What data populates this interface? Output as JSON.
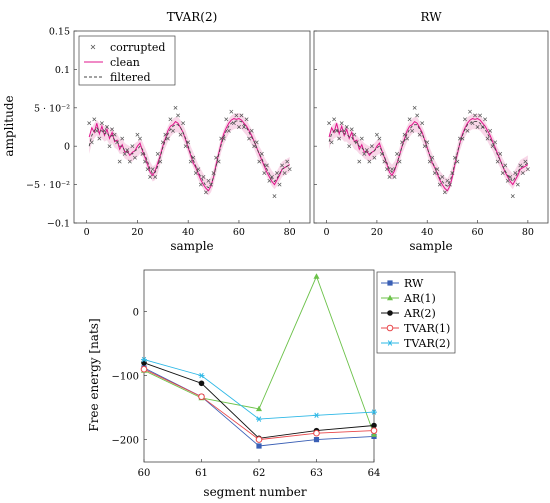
{
  "chart_data": [
    {
      "type": "line",
      "title": "TVAR(2)",
      "xlabel": "sample",
      "ylabel": "amplitude",
      "xlim": [
        -5,
        88
      ],
      "ylim": [
        -0.1,
        0.15
      ],
      "xticks": [
        0,
        20,
        40,
        60,
        80
      ],
      "yticks": [
        {
          "v": 0.15,
          "label": "0.15"
        },
        {
          "v": 0.1,
          "label": "0.1"
        },
        {
          "v": 0.05,
          "label": "5 · 10⁻²"
        },
        {
          "v": 0,
          "label": "0"
        },
        {
          "v": -0.05,
          "label": "−5 · 10⁻²"
        },
        {
          "v": -0.1,
          "label": "−0.1"
        }
      ],
      "legend": {
        "position": "top-left",
        "entries": [
          "corrupted",
          "clean",
          "filtered"
        ]
      },
      "colors": {
        "corrupted": "#555555",
        "clean": "#e0148c",
        "filtered": "#444444",
        "band": "#f3b6d6"
      },
      "x": [
        1,
        2,
        3,
        4,
        5,
        6,
        7,
        8,
        9,
        10,
        11,
        12,
        13,
        14,
        15,
        16,
        17,
        18,
        19,
        20,
        21,
        22,
        23,
        24,
        25,
        26,
        27,
        28,
        29,
        30,
        31,
        32,
        33,
        34,
        35,
        36,
        37,
        38,
        39,
        40,
        41,
        42,
        43,
        44,
        45,
        46,
        47,
        48,
        49,
        50,
        51,
        52,
        53,
        54,
        55,
        56,
        57,
        58,
        59,
        60,
        61,
        62,
        63,
        64,
        65,
        66,
        67,
        68,
        69,
        70,
        71,
        72,
        73,
        74,
        75,
        76,
        77,
        78,
        79,
        80
      ],
      "series": [
        {
          "name": "clean",
          "values": [
            0.012,
            0.024,
            0.018,
            0.03,
            0.016,
            0.026,
            0.014,
            0.022,
            0.01,
            0.018,
            0.006,
            0.008,
            -0.004,
            0.002,
            -0.008,
            -0.006,
            -0.012,
            -0.008,
            -0.006,
            0.0,
            0.004,
            -0.006,
            -0.015,
            -0.024,
            -0.034,
            -0.038,
            -0.032,
            -0.022,
            -0.012,
            0.0,
            0.01,
            0.02,
            0.026,
            0.028,
            0.032,
            0.03,
            0.024,
            0.018,
            0.008,
            -0.002,
            -0.012,
            -0.022,
            -0.028,
            -0.036,
            -0.044,
            -0.05,
            -0.055,
            -0.058,
            -0.052,
            -0.04,
            -0.024,
            -0.01,
            0.004,
            0.016,
            0.024,
            0.03,
            0.034,
            0.036,
            0.035,
            0.036,
            0.034,
            0.03,
            0.026,
            0.02,
            0.014,
            0.006,
            -0.002,
            -0.01,
            -0.018,
            -0.026,
            -0.034,
            -0.04,
            -0.046,
            -0.05,
            -0.044,
            -0.038,
            -0.03,
            -0.028,
            -0.026,
            -0.024
          ]
        },
        {
          "name": "filtered",
          "values": [
            0.0,
            0.014,
            0.02,
            0.024,
            0.02,
            0.02,
            0.016,
            0.018,
            0.012,
            0.014,
            0.008,
            0.006,
            0.0,
            0.0,
            -0.006,
            -0.008,
            -0.01,
            -0.01,
            -0.006,
            -0.004,
            0.0,
            -0.004,
            -0.012,
            -0.02,
            -0.03,
            -0.036,
            -0.034,
            -0.026,
            -0.014,
            -0.002,
            0.008,
            0.016,
            0.022,
            0.026,
            0.028,
            0.028,
            0.024,
            0.018,
            0.01,
            0.0,
            -0.01,
            -0.018,
            -0.026,
            -0.034,
            -0.04,
            -0.046,
            -0.052,
            -0.054,
            -0.05,
            -0.04,
            -0.026,
            -0.012,
            0.002,
            0.012,
            0.02,
            0.026,
            0.03,
            0.032,
            0.033,
            0.033,
            0.032,
            0.028,
            0.024,
            0.018,
            0.012,
            0.006,
            -0.002,
            -0.01,
            -0.016,
            -0.024,
            -0.03,
            -0.036,
            -0.042,
            -0.046,
            -0.042,
            -0.036,
            -0.03,
            -0.028,
            -0.026,
            -0.024
          ]
        },
        {
          "name": "corrupted",
          "values": [
            0.03,
            0.005,
            0.035,
            0.02,
            0.01,
            0.03,
            0.02,
            0.025,
            0.0,
            0.022,
            0.015,
            0.005,
            -0.02,
            0.01,
            -0.01,
            -0.005,
            -0.02,
            0.0,
            -0.015,
            0.015,
            0.01,
            -0.01,
            -0.02,
            -0.03,
            -0.04,
            -0.03,
            -0.04,
            -0.01,
            -0.02,
            0.005,
            0.015,
            0.01,
            0.035,
            0.02,
            0.05,
            0.04,
            0.015,
            0.03,
            0.0,
            0.005,
            -0.02,
            -0.015,
            -0.035,
            -0.03,
            -0.05,
            -0.04,
            -0.06,
            -0.045,
            -0.05,
            -0.035,
            -0.015,
            -0.02,
            0.01,
            0.01,
            0.035,
            0.02,
            0.045,
            0.03,
            0.04,
            0.025,
            0.04,
            0.025,
            0.035,
            0.01,
            0.02,
            0.0,
            0.005,
            -0.02,
            -0.01,
            -0.035,
            -0.025,
            -0.045,
            -0.04,
            -0.065,
            -0.035,
            -0.05,
            -0.025,
            -0.035,
            -0.02,
            -0.03
          ]
        }
      ]
    },
    {
      "type": "line",
      "title": "RW",
      "xlabel": "sample",
      "ylabel": "",
      "xlim": [
        -5,
        88
      ],
      "ylim": [
        -0.1,
        0.15
      ],
      "xticks": [
        0,
        20,
        40,
        60,
        80
      ],
      "colors": {
        "corrupted": "#555555",
        "clean": "#e0148c",
        "filtered": "#444444",
        "band": "#f3b6d6"
      },
      "x": [
        1,
        2,
        3,
        4,
        5,
        6,
        7,
        8,
        9,
        10,
        11,
        12,
        13,
        14,
        15,
        16,
        17,
        18,
        19,
        20,
        21,
        22,
        23,
        24,
        25,
        26,
        27,
        28,
        29,
        30,
        31,
        32,
        33,
        34,
        35,
        36,
        37,
        38,
        39,
        40,
        41,
        42,
        43,
        44,
        45,
        46,
        47,
        48,
        49,
        50,
        51,
        52,
        53,
        54,
        55,
        56,
        57,
        58,
        59,
        60,
        61,
        62,
        63,
        64,
        65,
        66,
        67,
        68,
        69,
        70,
        71,
        72,
        73,
        74,
        75,
        76,
        77,
        78,
        79,
        80
      ],
      "series": [
        {
          "name": "clean",
          "values": [
            0.012,
            0.024,
            0.018,
            0.03,
            0.016,
            0.026,
            0.014,
            0.022,
            0.01,
            0.018,
            0.006,
            0.008,
            -0.004,
            0.002,
            -0.008,
            -0.006,
            -0.012,
            -0.008,
            -0.006,
            0.0,
            0.004,
            -0.006,
            -0.015,
            -0.024,
            -0.034,
            -0.038,
            -0.032,
            -0.022,
            -0.012,
            0.0,
            0.01,
            0.02,
            0.026,
            0.028,
            0.032,
            0.03,
            0.024,
            0.018,
            0.008,
            -0.002,
            -0.012,
            -0.022,
            -0.028,
            -0.036,
            -0.044,
            -0.05,
            -0.055,
            -0.058,
            -0.052,
            -0.04,
            -0.024,
            -0.01,
            0.004,
            0.016,
            0.024,
            0.03,
            0.034,
            0.036,
            0.035,
            0.036,
            0.034,
            0.03,
            0.026,
            0.02,
            0.014,
            0.006,
            -0.002,
            -0.01,
            -0.018,
            -0.026,
            -0.034,
            -0.04,
            -0.046,
            -0.05,
            -0.044,
            -0.038,
            -0.03,
            -0.028,
            -0.026,
            -0.024
          ]
        },
        {
          "name": "filtered",
          "values": [
            0.006,
            0.016,
            0.02,
            0.022,
            0.018,
            0.02,
            0.016,
            0.016,
            0.012,
            0.012,
            0.006,
            0.004,
            0.0,
            -0.002,
            -0.006,
            -0.008,
            -0.01,
            -0.008,
            -0.006,
            -0.002,
            0.0,
            -0.006,
            -0.014,
            -0.022,
            -0.03,
            -0.034,
            -0.03,
            -0.022,
            -0.012,
            0.0,
            0.008,
            0.016,
            0.022,
            0.026,
            0.028,
            0.028,
            0.022,
            0.016,
            0.008,
            -0.002,
            -0.012,
            -0.02,
            -0.028,
            -0.034,
            -0.042,
            -0.046,
            -0.05,
            -0.052,
            -0.046,
            -0.036,
            -0.022,
            -0.008,
            0.004,
            0.014,
            0.022,
            0.028,
            0.03,
            0.032,
            0.032,
            0.032,
            0.03,
            0.026,
            0.022,
            0.016,
            0.01,
            0.004,
            -0.004,
            -0.012,
            -0.018,
            -0.026,
            -0.032,
            -0.038,
            -0.042,
            -0.046,
            -0.04,
            -0.034,
            -0.028,
            -0.026,
            -0.024,
            -0.022
          ]
        },
        {
          "name": "corrupted",
          "values": [
            0.03,
            0.005,
            0.035,
            0.02,
            0.01,
            0.03,
            0.02,
            0.025,
            0.0,
            0.022,
            0.015,
            0.005,
            -0.02,
            0.01,
            -0.01,
            -0.005,
            -0.02,
            0.0,
            -0.015,
            0.015,
            0.01,
            -0.01,
            -0.02,
            -0.03,
            -0.04,
            -0.03,
            -0.04,
            -0.01,
            -0.02,
            0.005,
            0.015,
            0.01,
            0.035,
            0.02,
            0.05,
            0.04,
            0.015,
            0.03,
            0.0,
            0.005,
            -0.02,
            -0.015,
            -0.035,
            -0.03,
            -0.05,
            -0.04,
            -0.06,
            -0.045,
            -0.05,
            -0.035,
            -0.015,
            -0.02,
            0.01,
            0.01,
            0.035,
            0.02,
            0.045,
            0.03,
            0.04,
            0.025,
            0.04,
            0.025,
            0.035,
            0.01,
            0.02,
            0.0,
            0.005,
            -0.02,
            -0.01,
            -0.035,
            -0.025,
            -0.045,
            -0.04,
            -0.065,
            -0.035,
            -0.05,
            -0.025,
            -0.035,
            -0.02,
            -0.03
          ]
        }
      ]
    },
    {
      "type": "line",
      "title": "",
      "xlabel": "segment number",
      "ylabel": "Free energy [nats]",
      "xlim": [
        60,
        64
      ],
      "ylim": [
        -235,
        65
      ],
      "xticks": [
        60,
        61,
        62,
        63,
        64
      ],
      "yticks": [
        0,
        -100,
        -200
      ],
      "legend": {
        "position": "right",
        "entries": [
          "RW",
          "AR(1)",
          "AR(2)",
          "TVAR(1)",
          "TVAR(2)"
        ]
      },
      "x": [
        60,
        61,
        62,
        63,
        64
      ],
      "series": [
        {
          "name": "RW",
          "color": "#3a5fb5",
          "marker": "square",
          "values": [
            -88,
            -133,
            -210,
            -200,
            -195
          ]
        },
        {
          "name": "AR(1)",
          "color": "#6cc24a",
          "marker": "triangle",
          "values": [
            -92,
            -135,
            -152,
            55,
            -192
          ]
        },
        {
          "name": "AR(2)",
          "color": "#111111",
          "marker": "circle",
          "values": [
            -80,
            -112,
            -198,
            -186,
            -178
          ]
        },
        {
          "name": "TVAR(1)",
          "color": "#e8474b",
          "marker": "open-circle",
          "values": [
            -90,
            -133,
            -200,
            -190,
            -186
          ]
        },
        {
          "name": "TVAR(2)",
          "color": "#2eb8e6",
          "marker": "star",
          "values": [
            -75,
            -100,
            -168,
            -162,
            -157
          ]
        }
      ]
    }
  ]
}
